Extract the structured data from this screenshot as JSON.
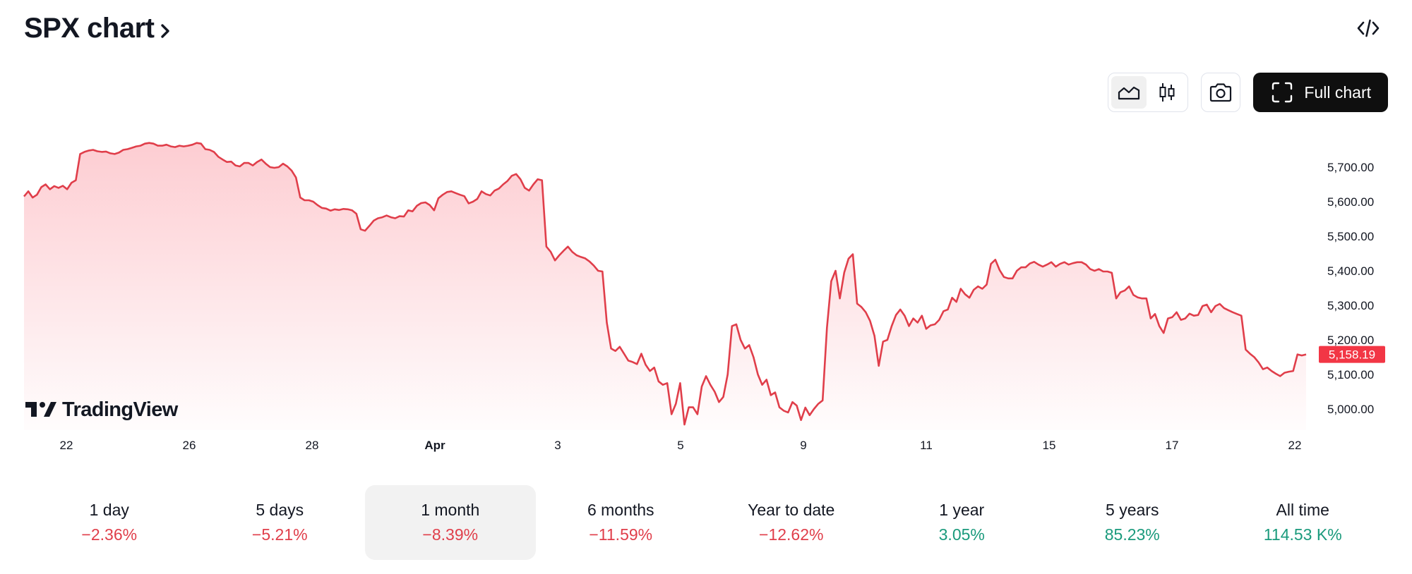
{
  "header": {
    "title": "SPX chart"
  },
  "toolbar": {
    "full_chart_label": "Full chart",
    "active_style": "area"
  },
  "brand": {
    "name": "TradingView"
  },
  "colors": {
    "line": "#e03e4a",
    "fill_top": "#fdcdd2",
    "price_label_bg": "#f23645",
    "negative": "#e03e4a",
    "positive": "#1a9a7c"
  },
  "chart_data": {
    "type": "area",
    "series": [
      {
        "name": "SPX",
        "values": [
          5615,
          5630,
          5612,
          5620,
          5642,
          5650,
          5636,
          5645,
          5640,
          5646,
          5636,
          5655,
          5662,
          5738,
          5744,
          5748,
          5750,
          5746,
          5744,
          5745,
          5740,
          5738,
          5742,
          5750,
          5752,
          5756,
          5760,
          5762,
          5768,
          5770,
          5768,
          5762,
          5762,
          5765,
          5760,
          5758,
          5762,
          5760,
          5762,
          5765,
          5770,
          5768,
          5752,
          5750,
          5744,
          5730,
          5722,
          5715,
          5716,
          5705,
          5702,
          5712,
          5712,
          5705,
          5715,
          5722,
          5710,
          5700,
          5698,
          5700,
          5710,
          5702,
          5690,
          5670,
          5612,
          5604,
          5604,
          5600,
          5590,
          5582,
          5580,
          5574,
          5578,
          5576,
          5579,
          5578,
          5575,
          5565,
          5520,
          5516,
          5530,
          5545,
          5552,
          5555,
          5560,
          5555,
          5552,
          5558,
          5557,
          5575,
          5572,
          5588,
          5596,
          5598,
          5590,
          5575,
          5610,
          5620,
          5628,
          5630,
          5625,
          5620,
          5616,
          5595,
          5600,
          5608,
          5630,
          5622,
          5618,
          5632,
          5638,
          5650,
          5660,
          5675,
          5680,
          5665,
          5640,
          5632,
          5650,
          5665,
          5662,
          5470,
          5455,
          5430,
          5445,
          5458,
          5470,
          5455,
          5445,
          5440,
          5436,
          5427,
          5415,
          5400,
          5398,
          5250,
          5175,
          5168,
          5180,
          5160,
          5140,
          5136,
          5130,
          5160,
          5128,
          5110,
          5120,
          5080,
          5070,
          5075,
          4985,
          5015,
          5075,
          4955,
          5005,
          5005,
          4985,
          5065,
          5095,
          5070,
          5050,
          5020,
          5035,
          5100,
          5240,
          5245,
          5200,
          5175,
          5185,
          5150,
          5100,
          5070,
          5085,
          5040,
          5048,
          5005,
          4995,
          4990,
          5020,
          5010,
          4968,
          5004,
          4982,
          5000,
          5015,
          5025,
          5235,
          5370,
          5400,
          5320,
          5395,
          5435,
          5448,
          5305,
          5295,
          5280,
          5255,
          5212,
          5125,
          5195,
          5200,
          5240,
          5272,
          5288,
          5270,
          5240,
          5262,
          5250,
          5270,
          5232,
          5242,
          5245,
          5258,
          5283,
          5288,
          5322,
          5310,
          5348,
          5332,
          5322,
          5345,
          5355,
          5348,
          5360,
          5420,
          5432,
          5402,
          5382,
          5378,
          5378,
          5400,
          5410,
          5410,
          5421,
          5426,
          5418,
          5412,
          5418,
          5425,
          5412,
          5420,
          5425,
          5418,
          5422,
          5425,
          5425,
          5418,
          5405,
          5400,
          5405,
          5398,
          5398,
          5394,
          5320,
          5338,
          5343,
          5355,
          5330,
          5323,
          5320,
          5320,
          5262,
          5275,
          5240,
          5220,
          5262,
          5266,
          5280,
          5258,
          5262,
          5276,
          5270,
          5272,
          5298,
          5302,
          5280,
          5298,
          5304,
          5292,
          5286,
          5280,
          5275,
          5270,
          5172,
          5160,
          5150,
          5135,
          5115,
          5120,
          5110,
          5102,
          5095,
          5105,
          5108,
          5110,
          5158,
          5155,
          5158
        ]
      }
    ],
    "price_label": "5,158.19",
    "y_ticks": [
      "5,700.00",
      "5,600.00",
      "5,500.00",
      "5,400.00",
      "5,300.00",
      "5,200.00",
      "5,100.00",
      "5,000.00"
    ],
    "y_tick_values": [
      5700,
      5600,
      5500,
      5400,
      5300,
      5200,
      5100,
      5000
    ],
    "x_ticks": [
      {
        "label": "22",
        "bold": false
      },
      {
        "label": "26",
        "bold": false
      },
      {
        "label": "28",
        "bold": false
      },
      {
        "label": "Apr",
        "bold": true
      },
      {
        "label": "3",
        "bold": false
      },
      {
        "label": "5",
        "bold": false
      },
      {
        "label": "9",
        "bold": false
      },
      {
        "label": "11",
        "bold": false
      },
      {
        "label": "15",
        "bold": false
      },
      {
        "label": "17",
        "bold": false
      },
      {
        "label": "22",
        "bold": false
      }
    ],
    "ylim": [
      4940,
      5800
    ],
    "grid": false
  },
  "periods": [
    {
      "label": "1 day",
      "change": "−2.36%",
      "sign": "neg",
      "active": false
    },
    {
      "label": "5 days",
      "change": "−5.21%",
      "sign": "neg",
      "active": false
    },
    {
      "label": "1 month",
      "change": "−8.39%",
      "sign": "neg",
      "active": true
    },
    {
      "label": "6 months",
      "change": "−11.59%",
      "sign": "neg",
      "active": false
    },
    {
      "label": "Year to date",
      "change": "−12.62%",
      "sign": "neg",
      "active": false
    },
    {
      "label": "1 year",
      "change": "3.05%",
      "sign": "pos",
      "active": false
    },
    {
      "label": "5 years",
      "change": "85.23%",
      "sign": "pos",
      "active": false
    },
    {
      "label": "All time",
      "change": "114.53 K%",
      "sign": "pos",
      "active": false
    }
  ]
}
